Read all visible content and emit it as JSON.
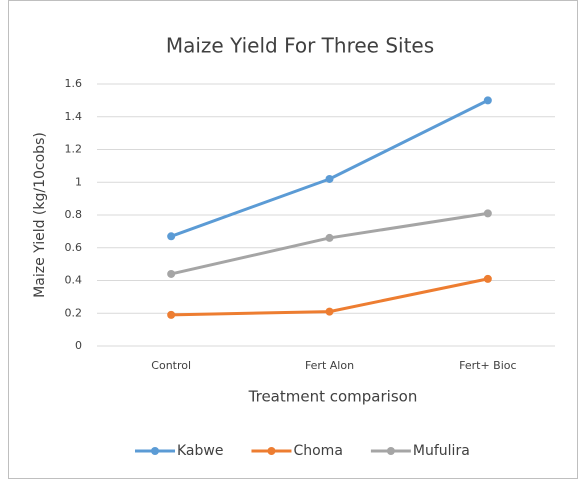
{
  "chart_data": {
    "type": "line",
    "title": "Maize Yield For Three Sites",
    "x_label": "Treatment comparison",
    "y_label": "Maize Yield (kg/10cobs)",
    "categories": [
      "Control",
      "Fert Alon",
      "Fert+ Bioc"
    ],
    "series": [
      {
        "name": "Kabwe",
        "color": "#5b9bd5",
        "values": [
          0.67,
          1.02,
          1.5
        ]
      },
      {
        "name": "Choma",
        "color": "#ed7d31",
        "values": [
          0.19,
          0.21,
          0.41
        ]
      },
      {
        "name": "Mufulira",
        "color": "#a5a5a5",
        "values": [
          0.44,
          0.66,
          0.81
        ]
      }
    ],
    "ylim": [
      0,
      1.6
    ],
    "yticks": [
      0,
      0.2,
      0.4,
      0.6,
      0.8,
      1,
      1.2,
      1.4,
      1.6
    ],
    "grid": true,
    "legend": "bottom"
  }
}
